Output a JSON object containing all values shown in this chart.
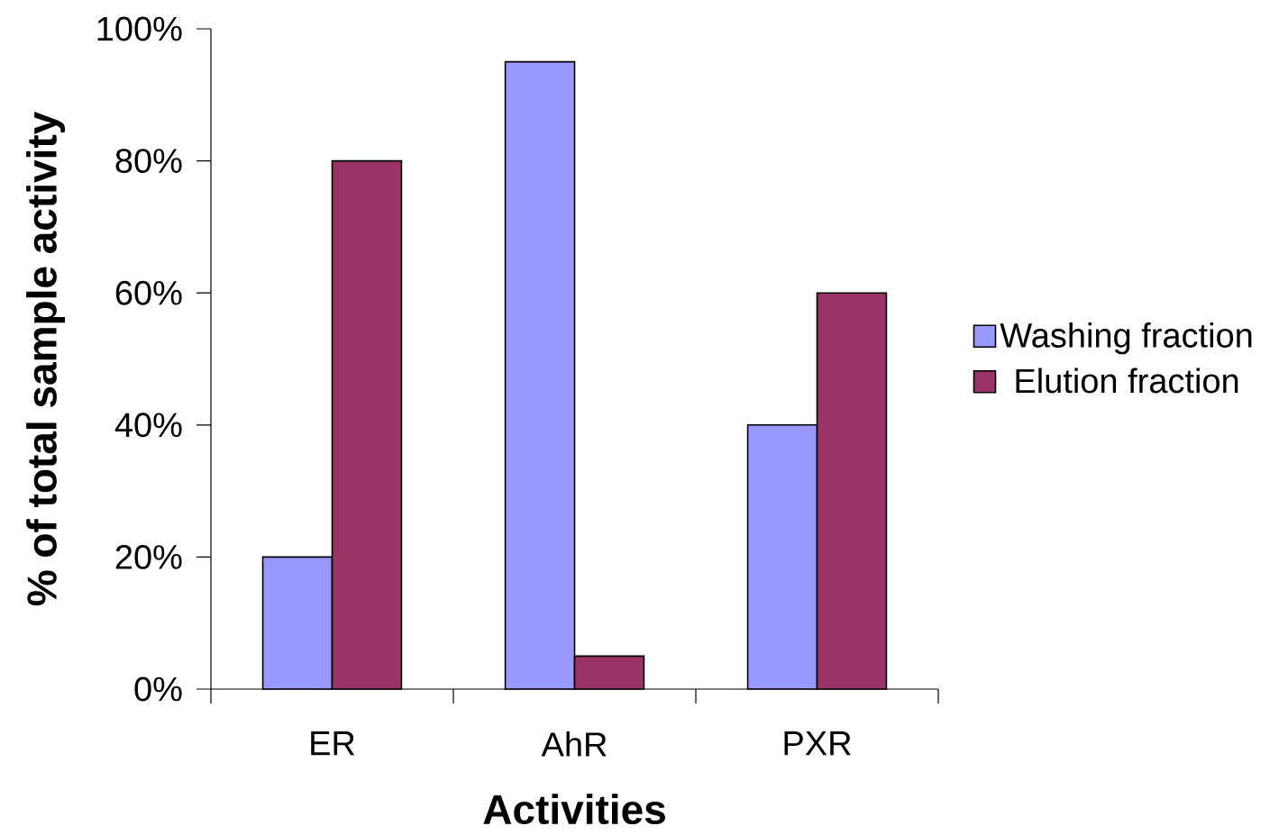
{
  "chart_data": {
    "type": "bar",
    "xlabel": "Activities",
    "ylabel": "% of total sample activity",
    "categories": [
      "ER",
      "AhR",
      "PXR"
    ],
    "series": [
      {
        "name": "Washing fraction",
        "color": "#9999ff",
        "values": [
          20,
          95,
          40
        ]
      },
      {
        "name": "Elution fraction",
        "color": "#993366",
        "values": [
          80,
          5,
          60
        ]
      }
    ],
    "ylim": [
      0,
      100
    ],
    "yticks": [
      {
        "value": 0,
        "label": "0%"
      },
      {
        "value": 20,
        "label": "20%"
      },
      {
        "value": 40,
        "label": "40%"
      },
      {
        "value": 60,
        "label": "60%"
      },
      {
        "value": 80,
        "label": "80%"
      },
      {
        "value": 100,
        "label": "100%"
      }
    ],
    "grid": false,
    "legend": "right"
  }
}
